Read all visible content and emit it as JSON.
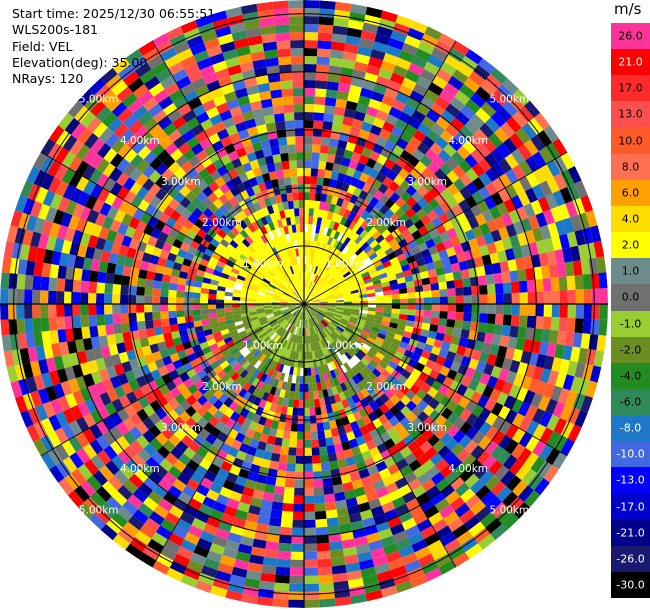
{
  "info": {
    "start_time": "Start time: 2025/12/30 06:55:51",
    "station": "WLS200s-181",
    "field": "Field: VEL",
    "elevation": "Elevation(deg): 35.00",
    "nrays": "NRays: 120"
  },
  "colorbar": {
    "unit": "m/s",
    "segments": [
      {
        "label": "26.0",
        "color": "#ff3399"
      },
      {
        "label": "21.0",
        "color": "#ff0000"
      },
      {
        "label": "17.0",
        "color": "#ff2a2a"
      },
      {
        "label": "13.0",
        "color": "#ff4f4f"
      },
      {
        "label": "10.0",
        "color": "#ff5a2a"
      },
      {
        "label": "8.0",
        "color": "#ff7050"
      },
      {
        "label": "6.0",
        "color": "#ffa000"
      },
      {
        "label": "4.0",
        "color": "#ffdd00"
      },
      {
        "label": "2.0",
        "color": "#ffff00"
      },
      {
        "label": "1.0",
        "color": "#6e8b8b"
      },
      {
        "label": "0.0",
        "color": "#707070"
      },
      {
        "label": "-1.0",
        "color": "#9acd32"
      },
      {
        "label": "-2.0",
        "color": "#6b8e23"
      },
      {
        "label": "-4.0",
        "color": "#228b22"
      },
      {
        "label": "-6.0",
        "color": "#2e8b57"
      },
      {
        "label": "-8.0",
        "color": "#1e78c8"
      },
      {
        "label": "-10.0",
        "color": "#4169e1"
      },
      {
        "label": "-13.0",
        "color": "#0000ff"
      },
      {
        "label": "-17.0",
        "color": "#0000cd"
      },
      {
        "label": "-21.0",
        "color": "#00008b"
      },
      {
        "label": "-26.0",
        "color": "#191970"
      },
      {
        "label": "-30.0",
        "color": "#000000"
      }
    ]
  },
  "chart_data": {
    "type": "heatmap",
    "projection": "polar (PPI)",
    "field": "VEL",
    "units": "m/s",
    "nrays": 120,
    "range_rings_km": [
      1.0,
      2.0,
      3.0,
      4.0,
      5.0
    ],
    "range_ring_labels": [
      "1.00km",
      "2.00km",
      "3.00km",
      "4.00km",
      "5.00km"
    ],
    "max_range_km": 5.0,
    "value_range": [
      -30.0,
      30.0
    ],
    "description_of_values": "near-center gates mostly 0 to +4 m/s (yellow) north and -1 to -4 m/s (green) south; outer gates noisy across full color scale"
  }
}
